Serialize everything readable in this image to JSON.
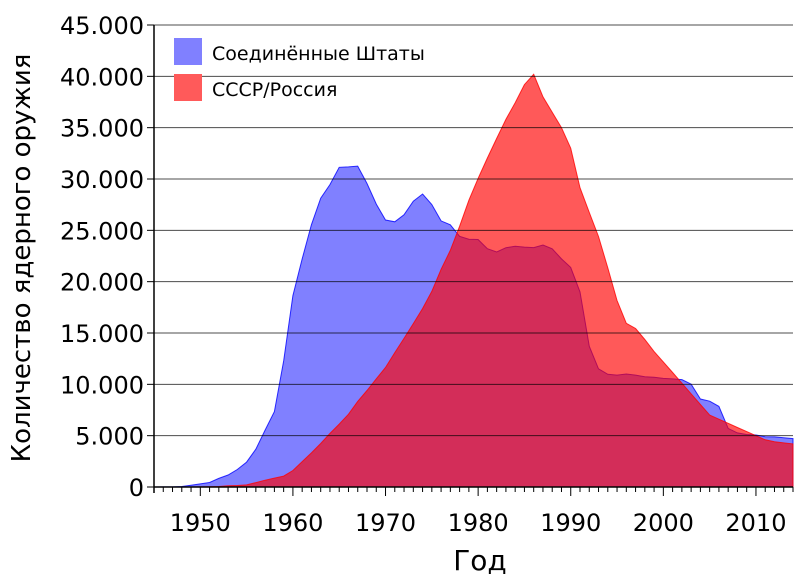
{
  "chart_data": {
    "type": "area",
    "title": "",
    "xlabel": "Год",
    "ylabel": "Количество ядерного оружия",
    "xlim": [
      1945,
      2014
    ],
    "ylim": [
      0,
      45000
    ],
    "x_ticks": [
      1950,
      1960,
      1970,
      1980,
      1990,
      2000,
      2010
    ],
    "y_ticks": [
      0,
      5000,
      10000,
      15000,
      20000,
      25000,
      30000,
      35000,
      40000,
      45000
    ],
    "y_tick_labels": [
      "0",
      "5.000",
      "10.000",
      "15.000",
      "20.000",
      "25.000",
      "30.000",
      "35.000",
      "40.000",
      "45.000"
    ],
    "grid": "horizontal",
    "legend_position": "top-left",
    "x": [
      1945,
      1946,
      1947,
      1948,
      1949,
      1950,
      1951,
      1952,
      1953,
      1954,
      1955,
      1956,
      1957,
      1958,
      1959,
      1960,
      1961,
      1962,
      1963,
      1964,
      1965,
      1966,
      1967,
      1968,
      1969,
      1970,
      1971,
      1972,
      1973,
      1974,
      1975,
      1976,
      1977,
      1978,
      1979,
      1980,
      1981,
      1982,
      1983,
      1984,
      1985,
      1986,
      1987,
      1988,
      1989,
      1990,
      1991,
      1992,
      1993,
      1994,
      1995,
      1996,
      1997,
      1998,
      1999,
      2000,
      2001,
      2002,
      2003,
      2004,
      2005,
      2006,
      2007,
      2008,
      2009,
      2010,
      2011,
      2012,
      2013,
      2014
    ],
    "series": [
      {
        "name": "Соединённые Штаты",
        "color": "#8080ff",
        "stroke": "#0000ff",
        "values": [
          2,
          9,
          13,
          50,
          170,
          299,
          438,
          841,
          1169,
          1703,
          2422,
          3692,
          5543,
          7345,
          12298,
          18638,
          22229,
          25540,
          28133,
          29463,
          31139,
          31175,
          31255,
          29561,
          27552,
          26008,
          25830,
          26516,
          27835,
          28537,
          27519,
          25914,
          25542,
          24418,
          24138,
          24104,
          23208,
          22886,
          23305,
          23459,
          23368,
          23317,
          23575,
          23205,
          22217,
          21392,
          19008,
          13708,
          11511,
          10979,
          10904,
          11011,
          10903,
          10732,
          10685,
          10577,
          10526,
          10457,
          10027,
          8570,
          8360,
          7853,
          5709,
          5273,
          5113,
          5066,
          4897,
          4881,
          4804,
          4717
        ]
      },
      {
        "name": "СССР/Россия",
        "color": "#ff5a5a",
        "stroke": "#ff0000",
        "values": [
          0,
          0,
          0,
          0,
          1,
          5,
          25,
          50,
          120,
          150,
          200,
          426,
          660,
          869,
          1060,
          1605,
          2471,
          3322,
          4238,
          5221,
          6129,
          7089,
          8339,
          9399,
          10538,
          11643,
          13092,
          14478,
          15915,
          17385,
          19055,
          21205,
          23044,
          25393,
          27935,
          30062,
          32049,
          33952,
          35804,
          37431,
          39197,
          40200,
          38000,
          36500,
          35000,
          33000,
          29154,
          26734,
          24403,
          21339,
          18179,
          15942,
          15442,
          14368,
          13188,
          12188,
          11152,
          10114,
          9076,
          8038,
          7000,
          6600,
          6200,
          5800,
          5400,
          5000,
          4600,
          4400,
          4300,
          4200
        ]
      }
    ]
  }
}
